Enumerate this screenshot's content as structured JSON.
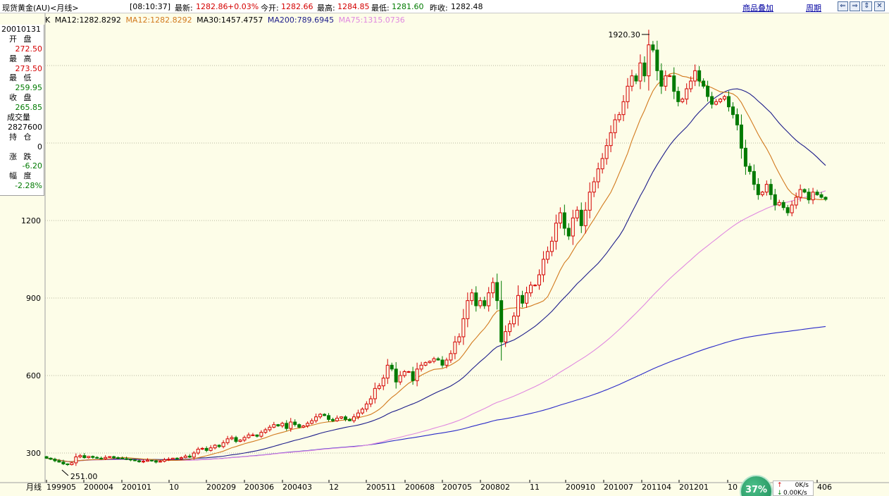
{
  "header": {
    "instrument": "现货黄金(AU)<月线>",
    "time": "[08:10:37]",
    "latest_label": "最新:",
    "latest_value": "1282.86",
    "change_pct": "+0.03%",
    "open_label": "今开:",
    "open_value": "1282.66",
    "high_label": "最高:",
    "high_value": "1284.85",
    "low_label": "最低:",
    "low_value": "1281.60",
    "prev_close_label": "昨收:",
    "prev_close_value": "1282.48",
    "overlay_link": "商品叠加",
    "period_link": "周期",
    "buttons": [
      "⇐",
      "⇒",
      "⇕",
      "✕"
    ]
  },
  "legend": {
    "prefix": "K",
    "items": [
      {
        "text": "MA12:1282.8292",
        "color": "#000000"
      },
      {
        "text": "MA12:1282.8292",
        "color": "#d27a1e"
      },
      {
        "text": "MA30:1457.4757",
        "color": "#000000"
      },
      {
        "text": "MA200:789.6945",
        "color": "#1c1c8a"
      },
      {
        "text": "MA75:1315.0736",
        "color": "#e088e0"
      }
    ]
  },
  "side_panel": {
    "date": "20010131",
    "open_label": "开 盘",
    "open_value": "272.50",
    "high_label": "最 高",
    "high_value": "273.50",
    "low_label": "最 低",
    "low_value": "259.95",
    "close_label": "收 盘",
    "close_value": "265.85",
    "volume_label": "成交量",
    "volume_value": "2827600",
    "position_label": "持 仓",
    "position_value": "0",
    "change_label": "涨 跌",
    "change_value": "-6.20",
    "amplitude_label": "幅 度",
    "amplitude_value": "-2.28%"
  },
  "chart_data": {
    "type": "candlestick",
    "y_ticks": [
      300,
      600,
      900,
      1200
    ],
    "ylim": [
      250,
      1980
    ],
    "x_axis_prefix": "月线",
    "x_ticks": [
      "199905",
      "200004",
      "200101",
      "10",
      "200209",
      "200306",
      "200403",
      "12",
      "200511",
      "200608",
      "200705",
      "200802",
      "11",
      "200910",
      "201007",
      "201104",
      "201201",
      "10",
      "406"
    ],
    "annotations": [
      {
        "text": "1920.30",
        "value": 1920.3
      },
      {
        "text": "251.00",
        "value": 251.0
      }
    ],
    "colors": {
      "up": "#d40000",
      "down": "#007a00",
      "ma12": "#d27a1e",
      "ma30": "#1c1c8a",
      "ma75": "#e088e0",
      "ma200": "#2a2ac8"
    },
    "ma30_end": 1457.4757,
    "ma75_end": 1315.0736,
    "ma200_end": 789.6945,
    "ma12_end": 1282.8292,
    "series": [
      {
        "name": "close",
        "values": [
          280,
          276,
          270,
          265,
          258,
          255,
          262,
          285,
          290,
          282,
          287,
          283,
          280,
          278,
          283,
          286,
          282,
          280,
          278,
          276,
          273,
          270,
          266,
          268,
          272,
          270,
          265,
          268,
          274,
          276,
          280,
          278,
          282,
          288,
          284,
          300,
          315,
          318,
          310,
          320,
          330,
          325,
          340,
          355,
          360,
          345,
          350,
          360,
          370,
          370,
          365,
          380,
          390,
          400,
          410,
          405,
          415,
          395,
          420,
          410,
          400,
          405,
          415,
          425,
          440,
          450,
          445,
          430,
          425,
          435,
          440,
          430,
          425,
          440,
          455,
          470,
          490,
          510,
          550,
          560,
          590,
          640,
          625,
          575,
          600,
          615,
          615,
          580,
          625,
          640,
          650,
          655,
          665,
          660,
          640,
          660,
          685,
          730,
          750,
          820,
          890,
          920,
          870,
          890,
          870,
          920,
          960,
          890,
          730,
          770,
          800,
          830,
          910,
          880,
          920,
          950,
          950,
          990,
          1050,
          1080,
          1120,
          1190,
          1230,
          1170,
          1140,
          1210,
          1240,
          1180,
          1240,
          1310,
          1350,
          1400,
          1440,
          1490,
          1540,
          1590,
          1610,
          1660,
          1720,
          1760,
          1740,
          1810,
          1760,
          1880,
          1860,
          1780,
          1720,
          1760,
          1760,
          1700,
          1660,
          1670,
          1710,
          1740,
          1780,
          1740,
          1720,
          1680,
          1650,
          1660,
          1670,
          1680,
          1640,
          1610,
          1570,
          1480,
          1410,
          1390,
          1340,
          1300,
          1310,
          1340,
          1300,
          1260,
          1270,
          1250,
          1230,
          1260,
          1290,
          1320,
          1310,
          1280,
          1310,
          1300,
          1290,
          1282
        ]
      }
    ]
  },
  "status": {
    "cpu_percent": "37%",
    "net_up": "0K/s",
    "net_down": "0.00K/s"
  }
}
